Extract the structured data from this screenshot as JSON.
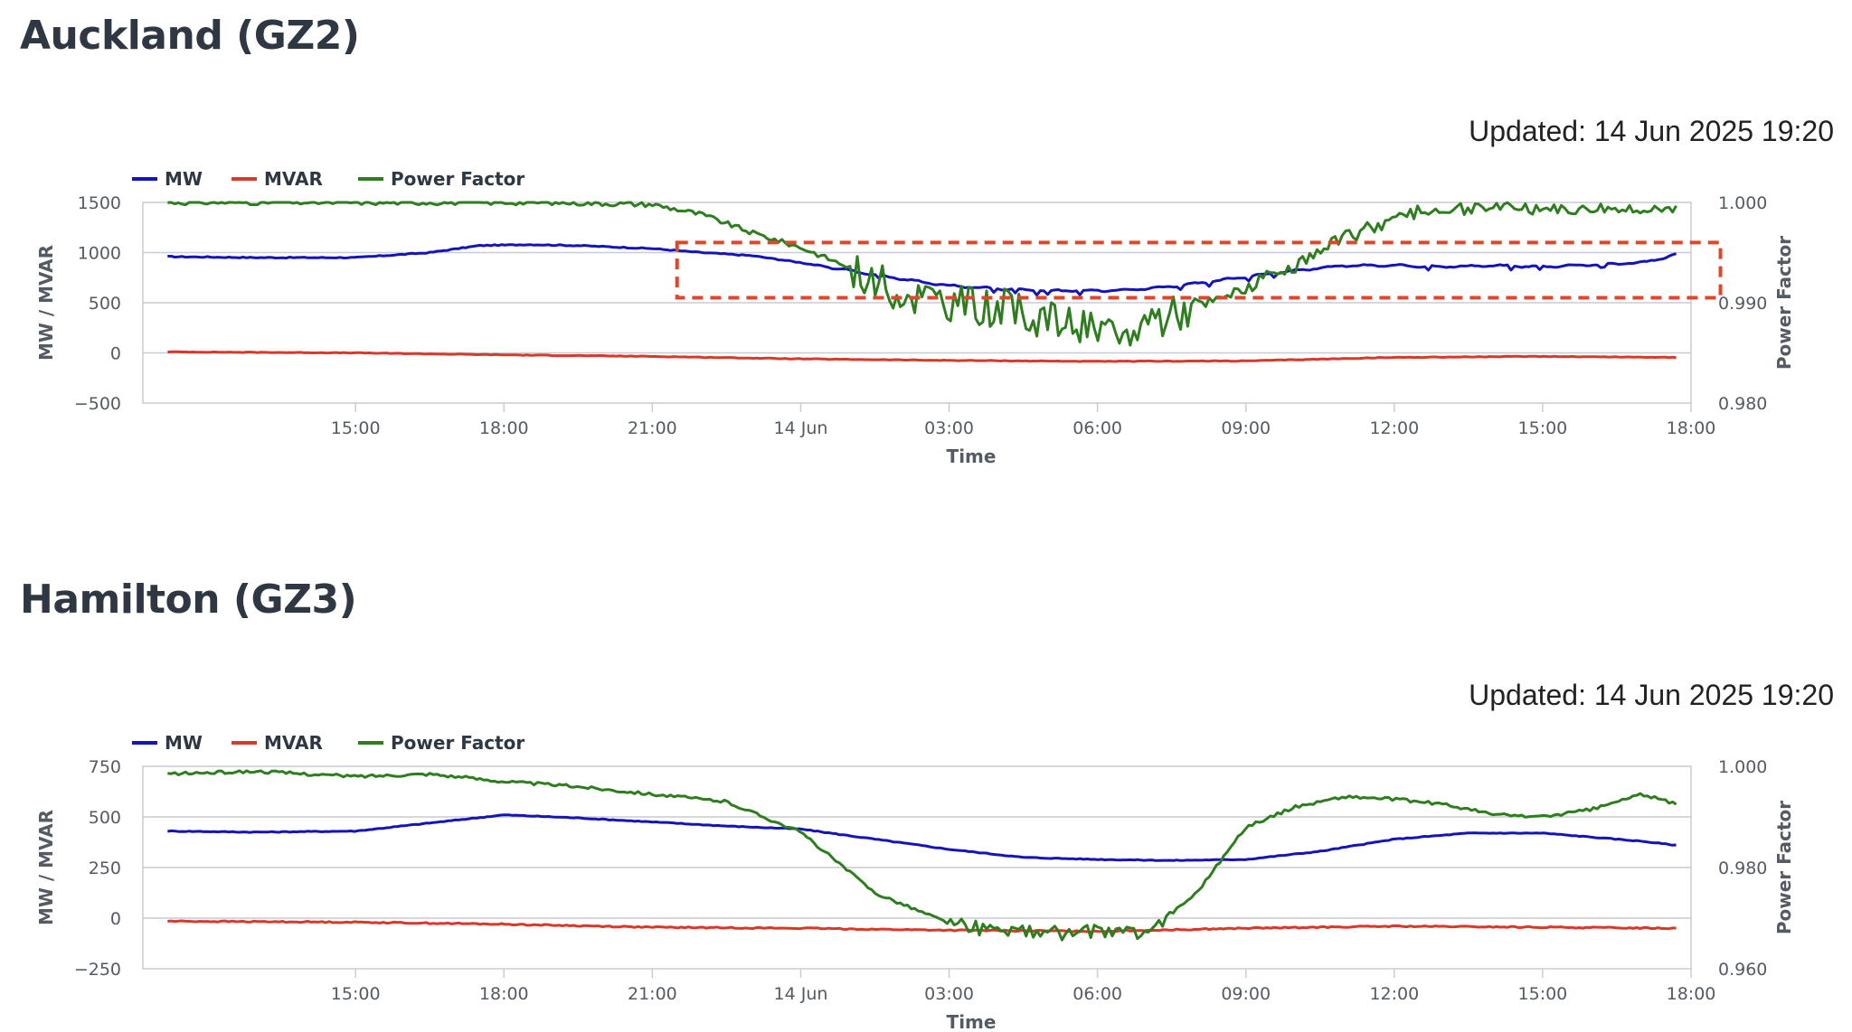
{
  "panels": [
    {
      "title": "Auckland (GZ2)",
      "updated": "Updated: 14 Jun 2025 19:20",
      "highlight": true
    },
    {
      "title": "Hamilton (GZ3)",
      "updated": "Updated: 14 Jun 2025 19:20",
      "highlight": false
    }
  ],
  "colors": {
    "mw": "#1414b8",
    "mvar": "#d8392b",
    "pf": "#2e7d1e",
    "grid": "#c8ccd4",
    "highlight": "#e0462a"
  },
  "chart_data": [
    {
      "type": "line",
      "title": "Auckland (GZ2)",
      "xlabel": "Time",
      "ylabel": "MW / MVAR",
      "y2label": "Power Factor",
      "legend": [
        "MW",
        "MVAR",
        "Power Factor"
      ],
      "legend_position": "top-left",
      "x_tick_labels": [
        "15:00",
        "18:00",
        "21:00",
        "14 Jun",
        "03:00",
        "06:00",
        "09:00",
        "12:00",
        "15:00",
        "18:00"
      ],
      "x_range_hours": [
        -4.3,
        27.0
      ],
      "ylim": [
        -500,
        1500
      ],
      "y_ticks": [
        1500,
        1000,
        500,
        0,
        -500
      ],
      "y_tick_labels": [
        "1500",
        "1000",
        "500",
        "0",
        "−500"
      ],
      "y2lim": [
        0.98,
        1.0
      ],
      "y2_ticks": [
        1.0,
        0.99,
        0.98
      ],
      "y2_tick_labels": [
        "1.000",
        "0.990",
        "0.980"
      ],
      "grid": true,
      "annotation": {
        "type": "dashed-box",
        "x_from_hours": 6.5,
        "x_to_hours": 26.9,
        "y_from": 0.9905,
        "y_to": 0.996
      },
      "series": [
        {
          "name": "MW",
          "axis": "left",
          "x": [
            -3.8,
            -2,
            0,
            1.5,
            2.5,
            3.5,
            4.5,
            6,
            7,
            8,
            9,
            10,
            11,
            12,
            13,
            14,
            15,
            16,
            17,
            18,
            19,
            20,
            21,
            22,
            23,
            24,
            25,
            26,
            26.3,
            26.7
          ],
          "values": [
            960,
            950,
            950,
            1000,
            1070,
            1080,
            1070,
            1040,
            1000,
            970,
            900,
            820,
            740,
            670,
            640,
            620,
            620,
            640,
            690,
            760,
            820,
            870,
            870,
            860,
            870,
            860,
            880,
            900,
            930,
            980
          ]
        },
        {
          "name": "MVAR",
          "axis": "left",
          "x": [
            -3.8,
            0,
            3,
            6,
            9,
            12,
            15,
            18,
            21,
            24,
            26.7
          ],
          "values": [
            10,
            0,
            -20,
            -35,
            -60,
            -75,
            -85,
            -80,
            -45,
            -35,
            -45
          ]
        },
        {
          "name": "Power Factor",
          "axis": "right",
          "x": [
            -3.8,
            2,
            4,
            6,
            7,
            8,
            9,
            10,
            11,
            12,
            13,
            14,
            14.8,
            15.5,
            16,
            17,
            18,
            19,
            20,
            21,
            22,
            23,
            24,
            25,
            26,
            26.7
          ],
          "values": [
            1.0,
            1.0,
            1.0,
            0.9998,
            0.9988,
            0.997,
            0.9955,
            0.9935,
            0.991,
            0.99,
            0.9895,
            0.9885,
            0.9875,
            0.986,
            0.9885,
            0.9895,
            0.9915,
            0.9935,
            0.9965,
            0.9985,
            0.9993,
            0.9995,
            0.9994,
            0.9993,
            0.9995,
            0.9992
          ]
        }
      ]
    },
    {
      "type": "line",
      "title": "Hamilton (GZ3)",
      "xlabel": "Time",
      "ylabel": "MW / MVAR",
      "y2label": "Power Factor",
      "legend": [
        "MW",
        "MVAR",
        "Power Factor"
      ],
      "legend_position": "top-left",
      "x_tick_labels": [
        "15:00",
        "18:00",
        "21:00",
        "14 Jun",
        "03:00",
        "06:00",
        "09:00",
        "12:00",
        "15:00",
        "18:00"
      ],
      "x_range_hours": [
        -4.3,
        27.0
      ],
      "ylim": [
        -250,
        750
      ],
      "y_ticks": [
        750,
        500,
        250,
        0,
        -250
      ],
      "y_tick_labels": [
        "750",
        "500",
        "250",
        "0",
        "−250"
      ],
      "y2lim": [
        0.96,
        1.0
      ],
      "y2_ticks": [
        1.0,
        0.98,
        0.96
      ],
      "y2_tick_labels": [
        "1.000",
        "0.980",
        "0.960"
      ],
      "grid": true,
      "series": [
        {
          "name": "MW",
          "axis": "left",
          "x": [
            -3.8,
            -2,
            0,
            1.5,
            3,
            4.5,
            6,
            7.5,
            9,
            10.5,
            12,
            13.5,
            15,
            16.5,
            18,
            19.5,
            21,
            22.5,
            24,
            25.5,
            26,
            26.7
          ],
          "values": [
            430,
            425,
            430,
            470,
            510,
            495,
            475,
            455,
            440,
            390,
            340,
            300,
            290,
            285,
            290,
            330,
            390,
            420,
            420,
            390,
            380,
            360
          ],
          "x2": [],
          "values2": []
        },
        {
          "name": "MVAR",
          "axis": "left",
          "x": [
            -3.8,
            0,
            3,
            6,
            9,
            12,
            15,
            18,
            21,
            24,
            26.7
          ],
          "values": [
            -15,
            -20,
            -30,
            -45,
            -50,
            -60,
            -65,
            -50,
            -40,
            -45,
            -50
          ]
        },
        {
          "name": "Power Factor",
          "axis": "right",
          "x": [
            -3.8,
            -2,
            0,
            1.5,
            3,
            4.5,
            6,
            7.5,
            9,
            10.5,
            12,
            13,
            14,
            15,
            16,
            17,
            18,
            19,
            20,
            21,
            22,
            23,
            24,
            25,
            26,
            26.7
          ],
          "values": [
            0.9985,
            0.999,
            0.998,
            0.9985,
            0.997,
            0.996,
            0.9945,
            0.993,
            0.987,
            0.975,
            0.969,
            0.9675,
            0.967,
            0.9675,
            0.967,
            0.975,
            0.988,
            0.992,
            0.994,
            0.9935,
            0.9925,
            0.9905,
            0.99,
            0.9915,
            0.9945,
            0.9925
          ]
        }
      ]
    }
  ]
}
